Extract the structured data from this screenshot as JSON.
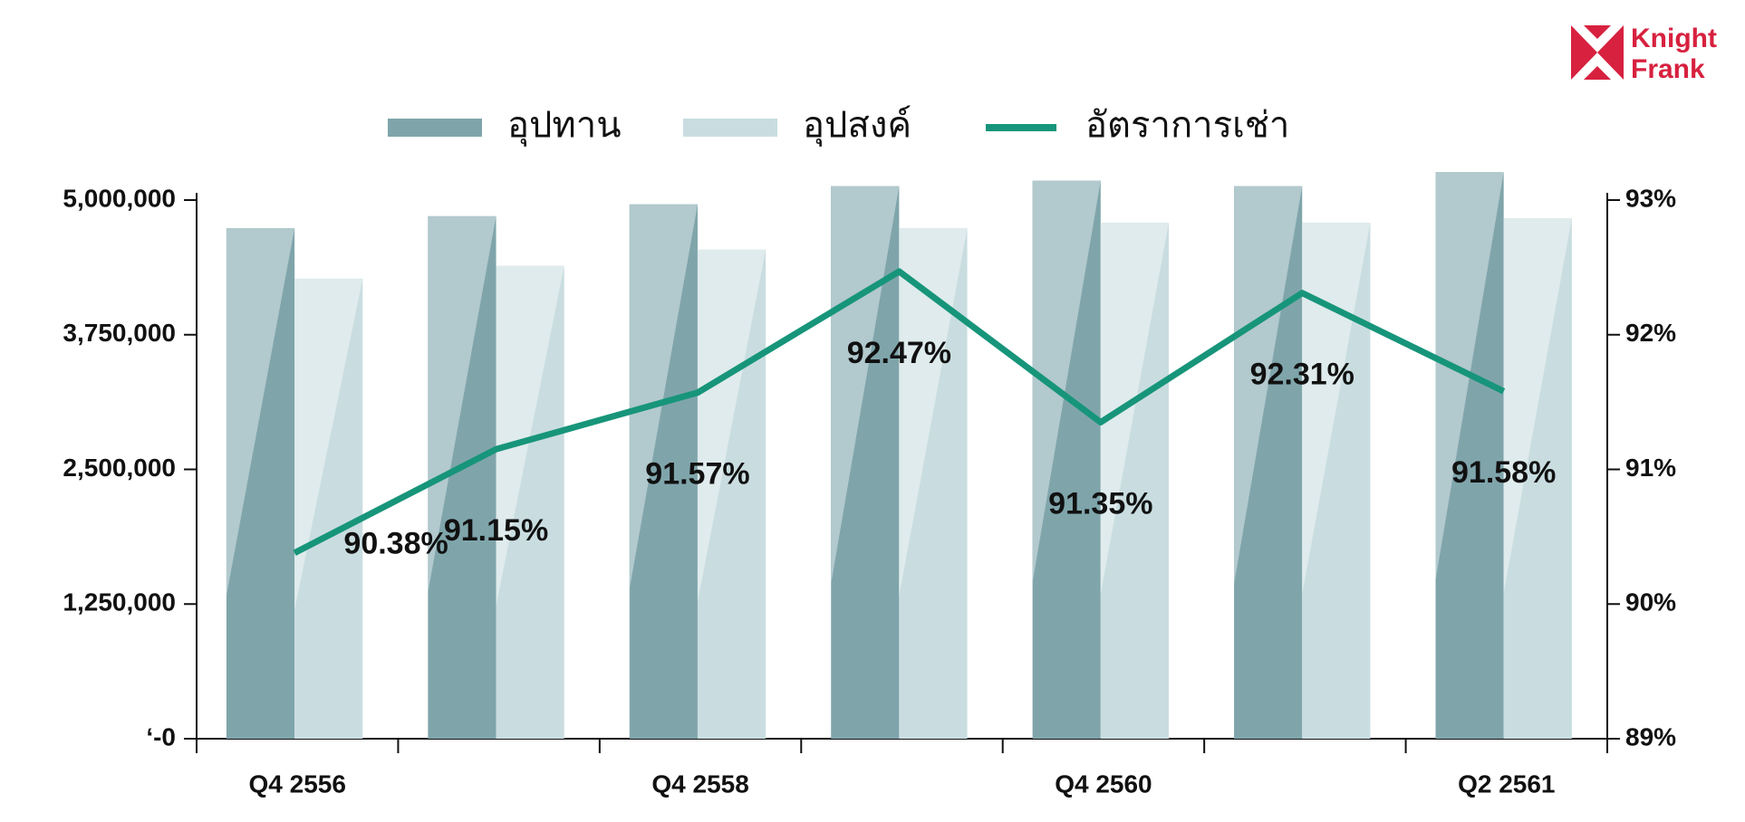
{
  "brand": "Knight Frank",
  "chart_data": {
    "type": "bar_line",
    "categories": [
      "Q4 2556",
      null,
      "Q4 2558",
      null,
      "Q4 2560",
      null,
      "Q2 2561"
    ],
    "series": [
      {
        "name": "อุปทาน",
        "color": "#7fa5ab",
        "values": [
          4740000,
          4850000,
          4960000,
          5130000,
          5180000,
          5130000,
          5260000
        ]
      },
      {
        "name": "อุปสงค์",
        "color": "#c9dde0",
        "values": [
          4270000,
          4390000,
          4540000,
          4740000,
          4790000,
          4790000,
          4830000
        ]
      },
      {
        "name": "อัตราการเช่า",
        "color": "#17957a",
        "axis": "y2",
        "values": [
          90.38,
          91.15,
          91.57,
          92.47,
          91.35,
          92.31,
          91.58
        ],
        "value_labels": [
          "90.38%",
          "91.15%",
          "91.57%",
          "92.47%",
          "91.35%",
          "92.31%",
          "91.58%"
        ]
      }
    ],
    "ylim": [
      0,
      5000000
    ],
    "yticks": [
      {
        "value": 0,
        "label": "‘-0"
      },
      {
        "value": 1250000,
        "label": "1,250,000"
      },
      {
        "value": 2500000,
        "label": "2,500,000"
      },
      {
        "value": 3750000,
        "label": "3,750,000"
      },
      {
        "value": 5000000,
        "label": "5,000,000"
      }
    ],
    "y2lim": [
      89,
      93
    ],
    "y2ticks": [
      {
        "value": 89,
        "label": "89%"
      },
      {
        "value": 90,
        "label": "90%"
      },
      {
        "value": 91,
        "label": "91%"
      },
      {
        "value": 92,
        "label": "92%"
      },
      {
        "value": 93,
        "label": "93%"
      }
    ],
    "legend": "top"
  }
}
